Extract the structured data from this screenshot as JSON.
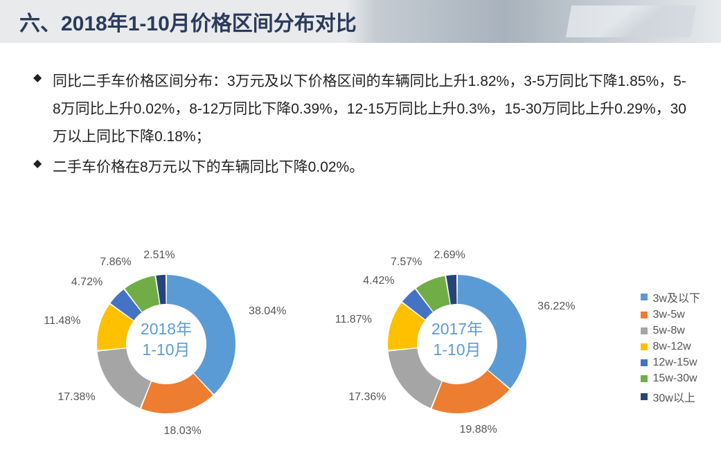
{
  "header": {
    "title": "六、2018年1-10月价格区间分布对比"
  },
  "bullets": [
    "同比二手车价格区间分布：3万元及以下价格区间的车辆同比上升1.82%，3-5万同比下降1.85%，5-8万同比上升0.02%，8-12万同比下降0.39%，12-15万同比上升0.3%，15-30万同比上升0.29%，30万以上同比下降0.18%；",
    "二手车价格在8万元以下的车辆同比下降0.02%。"
  ],
  "palette": {
    "c1": "#5b9bd5",
    "c2": "#ed7d31",
    "c3": "#a5a5a5",
    "c4": "#ffc000",
    "c5": "#4472c4",
    "c6": "#70ad47",
    "c7": "#264478"
  },
  "legend": [
    {
      "label": "3w及以下",
      "colorKey": "c1"
    },
    {
      "label": "3w-5w",
      "colorKey": "c2"
    },
    {
      "label": "5w-8w",
      "colorKey": "c3"
    },
    {
      "label": "8w-12w",
      "colorKey": "c4"
    },
    {
      "label": "12w-15w",
      "colorKey": "c5"
    },
    {
      "label": "15w-30w",
      "colorKey": "c6"
    },
    {
      "label": "30w以上",
      "colorKey": "c7"
    }
  ],
  "donut_style": {
    "outer_r": 100,
    "inner_r": 58,
    "gap_deg": 1.2,
    "label_r": 128,
    "label_fontsize": 16,
    "center_fontsize": 23,
    "center_color": "#5b9bd5",
    "stroke": "#ffffff"
  },
  "charts": [
    {
      "center": [
        "2018年",
        "1-10月"
      ],
      "slices": [
        {
          "value": 38.04,
          "label": "38.04%",
          "colorKey": "c1"
        },
        {
          "value": 18.03,
          "label": "18.03%",
          "colorKey": "c2"
        },
        {
          "value": 17.38,
          "label": "17.38%",
          "colorKey": "c3"
        },
        {
          "value": 11.48,
          "label": "11.48%",
          "colorKey": "c4"
        },
        {
          "value": 4.72,
          "label": "4.72%",
          "colorKey": "c5"
        },
        {
          "value": 7.86,
          "label": "7.86%",
          "colorKey": "c6"
        },
        {
          "value": 2.51,
          "label": "2.51%",
          "colorKey": "c7"
        }
      ]
    },
    {
      "center": [
        "2017年",
        "1-10月"
      ],
      "slices": [
        {
          "value": 36.22,
          "label": "36.22%",
          "colorKey": "c1"
        },
        {
          "value": 19.88,
          "label": "19.88%",
          "colorKey": "c2"
        },
        {
          "value": 17.36,
          "label": "17.36%",
          "colorKey": "c3"
        },
        {
          "value": 11.87,
          "label": "11.87%",
          "colorKey": "c4"
        },
        {
          "value": 4.42,
          "label": "4.42%",
          "colorKey": "c5"
        },
        {
          "value": 7.57,
          "label": "7.57%",
          "colorKey": "c6"
        },
        {
          "value": 2.69,
          "label": "2.69%",
          "colorKey": "c7"
        }
      ]
    }
  ]
}
